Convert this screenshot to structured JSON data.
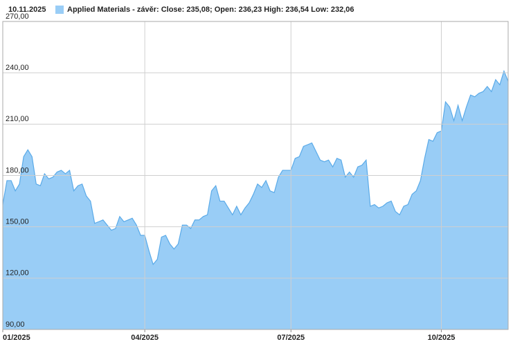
{
  "chart_data": {
    "type": "area",
    "title": "10.11.2025",
    "categories": [
      "01/2025",
      null,
      null,
      null,
      null,
      null,
      null,
      null,
      null,
      null,
      null,
      null,
      null,
      null,
      null,
      null,
      null,
      null,
      null,
      null,
      null,
      null,
      null,
      null,
      null,
      null,
      null,
      null,
      null,
      null,
      null,
      null,
      null,
      null,
      "04/2025",
      null,
      null,
      null,
      null,
      null,
      null,
      null,
      null,
      null,
      null,
      null,
      null,
      null,
      null,
      null,
      null,
      null,
      null,
      null,
      null,
      null,
      null,
      null,
      null,
      null,
      null,
      null,
      null,
      null,
      null,
      null,
      null,
      null,
      null,
      "07/2025",
      null,
      null,
      null,
      null,
      null,
      null,
      null,
      null,
      null,
      null,
      null,
      null,
      null,
      null,
      null,
      null,
      null,
      null,
      null,
      null,
      null,
      null,
      null,
      null,
      null,
      null,
      null,
      null,
      null,
      null,
      null,
      null,
      null,
      null,
      null,
      "10/2025",
      null,
      null,
      null,
      null,
      null,
      null,
      null,
      null,
      null,
      null,
      null,
      null,
      null,
      null,
      null,
      null
    ],
    "series": [
      {
        "name": "Applied Materials - závěr: Close: 235,08; Open: 236,23 High: 236,54 Low: 232,06",
        "color": "#99cdf6",
        "line_color": "#5aaae8",
        "values": [
          163,
          177,
          177,
          171,
          175,
          191,
          195,
          191,
          175,
          174,
          181,
          178,
          179,
          182,
          183,
          181,
          183,
          171,
          174,
          175,
          168,
          165,
          152,
          153,
          154,
          151,
          148,
          149,
          156,
          153,
          154,
          155,
          151,
          145,
          145,
          136,
          128,
          131,
          144,
          145,
          140,
          137,
          140,
          151,
          151,
          149,
          154,
          154,
          156,
          157,
          171,
          174,
          165,
          165,
          161,
          157,
          162,
          157,
          161,
          164,
          169,
          175,
          173,
          177,
          171,
          170,
          179,
          183,
          183,
          183,
          190,
          191,
          197,
          198,
          199,
          194,
          189,
          188,
          189,
          185,
          190,
          189,
          179,
          182,
          179,
          185,
          186,
          189,
          162,
          163,
          161,
          162,
          164,
          165,
          159,
          157,
          162,
          163,
          169,
          171,
          177,
          190,
          201,
          200,
          205,
          206,
          223,
          220,
          212,
          221,
          212,
          220,
          227,
          226,
          228,
          229,
          232,
          229,
          236,
          233,
          241,
          235
        ]
      }
    ],
    "ylim": [
      90,
      270
    ],
    "yticks": [
      {
        "value": 90,
        "label": "90,00"
      },
      {
        "value": 120,
        "label": "120,00"
      },
      {
        "value": 150,
        "label": "150,00"
      },
      {
        "value": 180,
        "label": "180,00"
      },
      {
        "value": 210,
        "label": "210,00"
      },
      {
        "value": 240,
        "label": "240,00"
      },
      {
        "value": 270,
        "label": "270,00"
      }
    ],
    "grid": true
  }
}
